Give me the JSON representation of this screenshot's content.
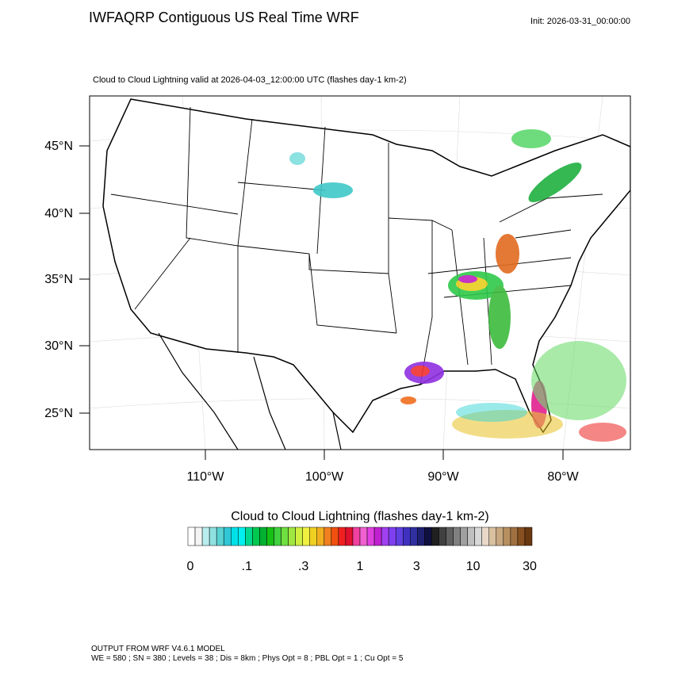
{
  "header": {
    "title": "IWFAQRP Contiguous US Real Time WRF",
    "init": "Init: 2026-03-31_00:00:00",
    "subtitle": "Cloud to Cloud Lightning valid at 2026-04-03_12:00:00 UTC   (flashes day-1 km-2)"
  },
  "map": {
    "lat_labels": [
      "45°N",
      "40°N",
      "35°N",
      "30°N",
      "25°N"
    ],
    "lon_labels": [
      "110°W",
      "100°W",
      "90°W",
      "80°W"
    ]
  },
  "colorbar": {
    "title": "Cloud to Cloud Lightning  (flashes day-1 km-2)",
    "labels": [
      "0",
      ".1",
      ".3",
      "1",
      "3",
      "10",
      "30"
    ]
  },
  "footer": {
    "line1": "OUTPUT FROM WRF V4.6.1 MODEL",
    "line2": "WE = 580 ; SN = 380 ; Levels = 38 ; Dis = 8km ; Phys Opt = 8 ; PBL Opt = 1 ; Cu Opt = 5"
  }
}
